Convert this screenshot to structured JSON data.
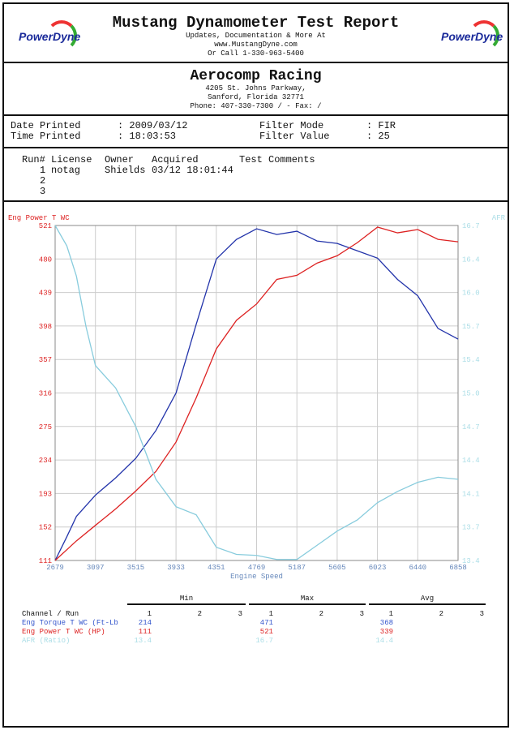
{
  "header": {
    "title": "Mustang Dynamometer Test Report",
    "line1": "Updates, Documentation & More At",
    "line2": "www.MustangDyne.com",
    "line3": "Or Call 1-330-963-5400",
    "logo_text": "PowerDyne"
  },
  "shop": {
    "name": "Aerocomp Racing",
    "addr1": "4205 St. Johns Parkway,",
    "addr2": "Sanford, Florida  32771",
    "phone": "Phone: 407-330-7300 /  - Fax:  /"
  },
  "info": {
    "date_label": "Date Printed",
    "date_value": ": 2009/03/12",
    "time_label": "Time Printed",
    "time_value": ": 18:03:53",
    "filter_mode_label": "Filter Mode",
    "filter_mode_value": ": FIR",
    "filter_value_label": "Filter Value",
    "filter_value_value": ": 25"
  },
  "runs": {
    "headers": [
      "Run#",
      "License",
      "Owner",
      "Acquired",
      "Test Comments"
    ],
    "rows": [
      {
        "run": "1",
        "license": "notag",
        "owner": "Shields",
        "acquired": "03/12 18:01:44"
      },
      {
        "run": "2"
      },
      {
        "run": "3"
      }
    ]
  },
  "chart_data": {
    "type": "line",
    "left_label": "Eng Power T WC",
    "right_label": "AFR",
    "xlabel": "Engine Speed",
    "xlim": [
      2679,
      6858
    ],
    "ylim_left": [
      111,
      521
    ],
    "ylim_right": [
      13.4,
      16.7
    ],
    "x_ticks": [
      "2679",
      "3097",
      "3515",
      "3933",
      "4351",
      "4769",
      "5187",
      "5605",
      "6023",
      "6440",
      "6858"
    ],
    "y_left_ticks": [
      "521",
      "480",
      "439",
      "398",
      "357",
      "316",
      "275",
      "234",
      "193",
      "152",
      "111"
    ],
    "y_right_ticks": [
      "16.7",
      "16.4",
      "16.0",
      "15.7",
      "15.4",
      "15.0",
      "14.7",
      "14.4",
      "14.1",
      "13.7",
      "13.4"
    ],
    "grid": true,
    "series": [
      {
        "name": "Eng Torque T WC",
        "color": "#2233aa",
        "axis": "left",
        "x": [
          2679,
          2800,
          2900,
          3097,
          3306,
          3515,
          3724,
          3933,
          4142,
          4351,
          4560,
          4769,
          4978,
          5187,
          5396,
          5605,
          5814,
          6023,
          6230,
          6440,
          6650,
          6858
        ],
        "y": [
          111,
          140,
          165,
          191,
          212,
          236,
          270,
          316,
          400,
          480,
          504,
          517,
          510,
          514,
          502,
          499,
          490,
          481,
          455,
          435,
          395,
          382
        ]
      },
      {
        "name": "Eng Power T WC",
        "color": "#dd2222",
        "axis": "left",
        "x": [
          2679,
          2900,
          3097,
          3306,
          3515,
          3724,
          3933,
          4142,
          4351,
          4560,
          4769,
          4978,
          5187,
          5396,
          5605,
          5814,
          6023,
          6230,
          6440,
          6650,
          6858
        ],
        "y": [
          111,
          135,
          154,
          174,
          196,
          220,
          256,
          310,
          370,
          405,
          425,
          455,
          460,
          475,
          484,
          500,
          519,
          512,
          516,
          504,
          501
        ]
      },
      {
        "name": "AFR",
        "color": "#88ccdd",
        "axis": "right",
        "x": [
          2679,
          2800,
          2900,
          3000,
          3097,
          3306,
          3515,
          3724,
          3933,
          4142,
          4351,
          4560,
          4769,
          4978,
          5187,
          5396,
          5605,
          5814,
          6023,
          6230,
          6440,
          6650,
          6858
        ],
        "y": [
          16.7,
          16.5,
          16.2,
          15.7,
          15.32,
          15.1,
          14.72,
          14.2,
          13.93,
          13.85,
          13.53,
          13.46,
          13.45,
          13.41,
          13.41,
          13.55,
          13.69,
          13.8,
          13.97,
          14.08,
          14.17,
          14.22,
          14.2
        ]
      }
    ]
  },
  "summary": {
    "groups": [
      "Min",
      "Max",
      "Avg"
    ],
    "run_cols": [
      "1",
      "2",
      "3"
    ],
    "channel_header": "Channel / Run",
    "rows": [
      {
        "name": "Eng Torque T WC (Ft-Lb",
        "color": "#3355cc",
        "min": "214",
        "max": "471",
        "avg": "368"
      },
      {
        "name": "Eng Power T WC (HP)",
        "color": "#dd2222",
        "min": "111",
        "max": "521",
        "avg": "339"
      },
      {
        "name": "AFR (Ratio)",
        "color": "#aadde6",
        "min": "13.4",
        "max": "16.7",
        "avg": "14.4"
      }
    ]
  }
}
